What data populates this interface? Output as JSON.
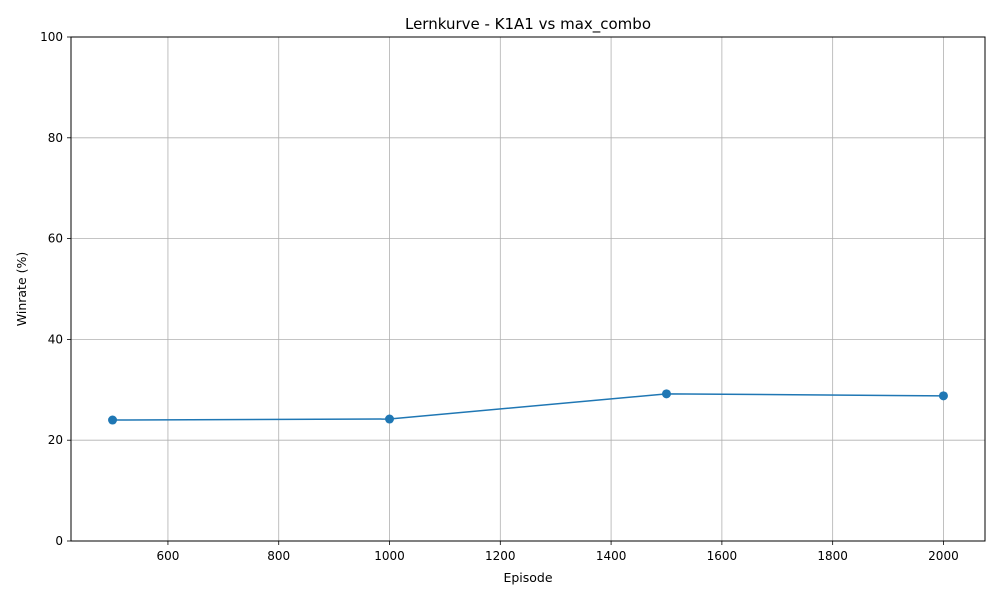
{
  "chart_data": {
    "type": "line",
    "title": "Lernkurve - K1A1 vs max_combo",
    "xlabel": "Episode",
    "ylabel": "Winrate (%)",
    "x": [
      500,
      1000,
      1500,
      2000
    ],
    "series": [
      {
        "values": [
          24.0,
          24.2,
          29.2,
          28.8
        ],
        "color": "#1f77b4",
        "marker": "circle"
      }
    ],
    "xlim": [
      425,
      2075
    ],
    "ylim": [
      0,
      100
    ],
    "xticks": [
      600,
      800,
      1000,
      1200,
      1400,
      1600,
      1800,
      2000
    ],
    "yticks": [
      0,
      20,
      40,
      60,
      80,
      100
    ],
    "grid": true,
    "legend": "none"
  }
}
